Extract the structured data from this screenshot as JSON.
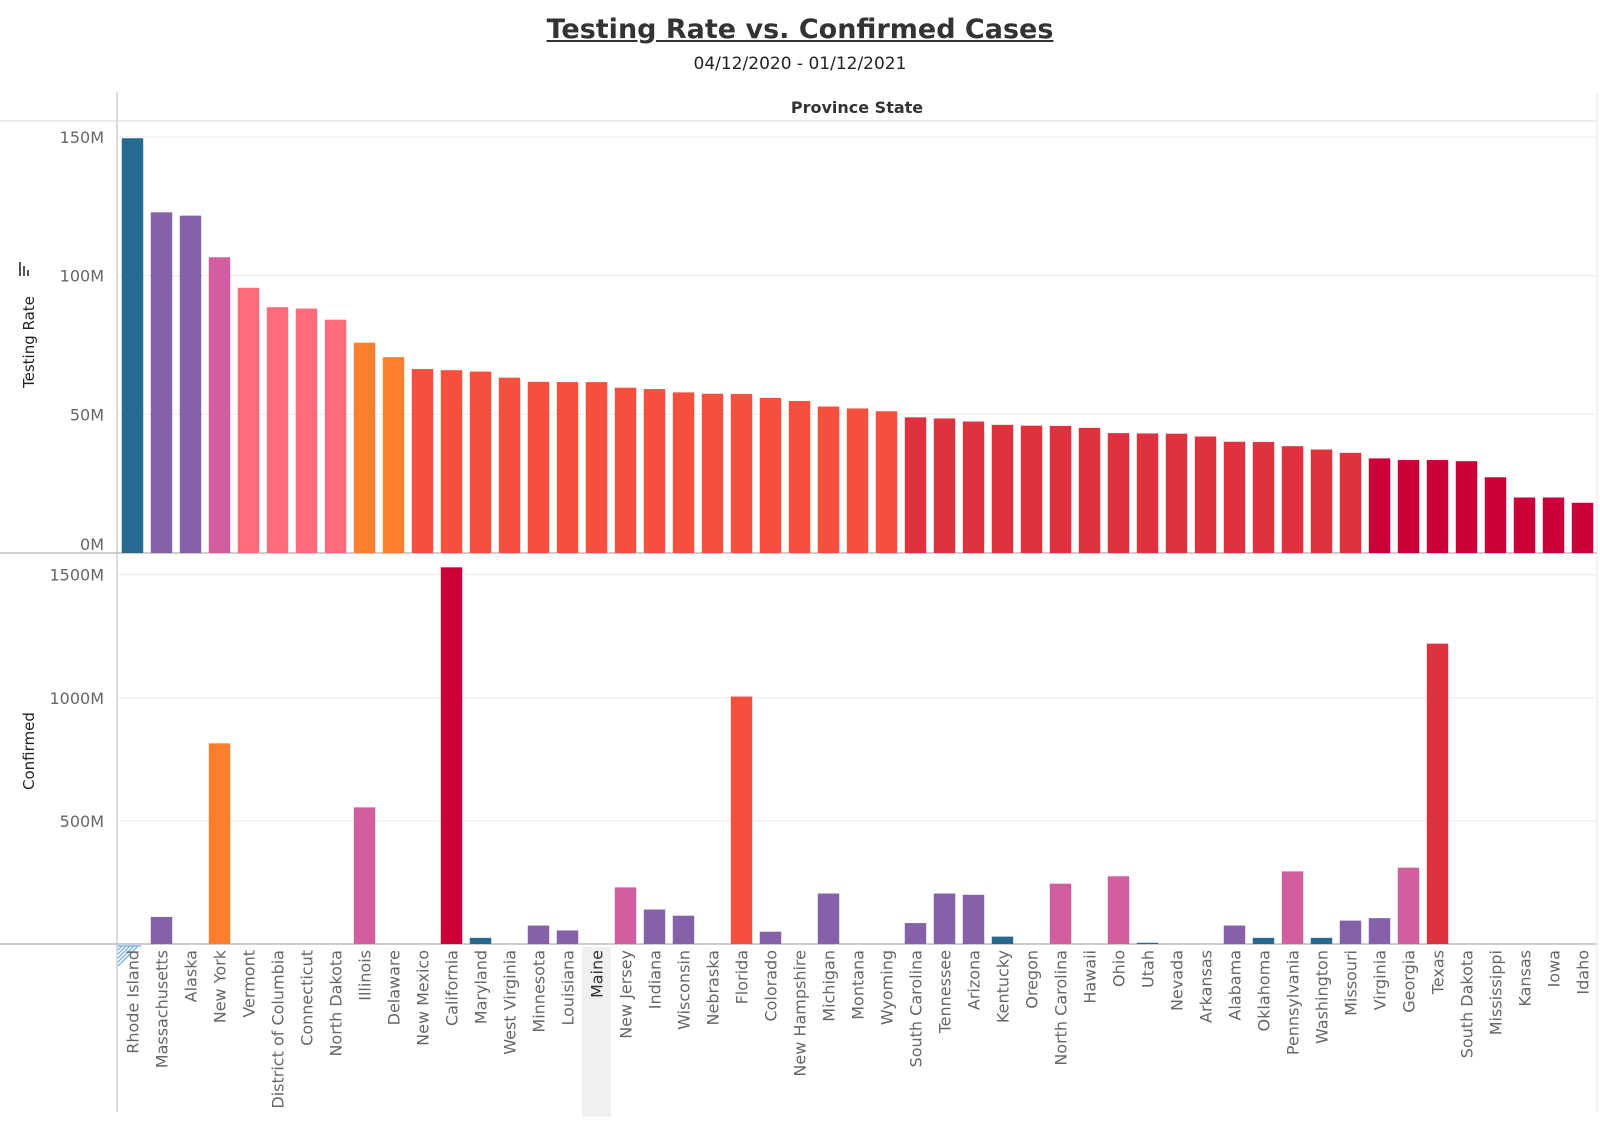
{
  "chart_data": {
    "type": "bar",
    "title": "Testing Rate vs. Confirmed Cases",
    "subtitle": "04/12/2020 - 01/12/2021",
    "column_header": "Province State",
    "sort_icon": "sort-descending-icon",
    "categories": [
      "Rhode Island",
      "Massachusetts",
      "Alaska",
      "New York",
      "Vermont",
      "District of Columbia",
      "Connecticut",
      "North Dakota",
      "Illinois",
      "Delaware",
      "New Mexico",
      "California",
      "Maryland",
      "West Virginia",
      "Minnesota",
      "Louisiana",
      "Maine",
      "New Jersey",
      "Indiana",
      "Wisconsin",
      "Nebraska",
      "Florida",
      "Colorado",
      "New Hampshire",
      "Michigan",
      "Montana",
      "Wyoming",
      "South Carolina",
      "Tennessee",
      "Arizona",
      "Kentucky",
      "Oregon",
      "North Carolina",
      "Hawaii",
      "Ohio",
      "Utah",
      "Nevada",
      "Arkansas",
      "Alabama",
      "Oklahoma",
      "Pennsylvania",
      "Washington",
      "Missouri",
      "Virginia",
      "Georgia",
      "Texas",
      "South Dakota",
      "Mississippi",
      "Kansas",
      "Iowa",
      "Idaho"
    ],
    "highlighted_category": "Maine",
    "series": [
      {
        "ylabel": "Testing Rate",
        "ylim": [
          0,
          155
        ],
        "ticks": [
          0,
          50,
          100,
          150
        ],
        "tick_labels": [
          "0M",
          "50M",
          "100M",
          "150M"
        ],
        "values": [
          149.5,
          122.8,
          121.6,
          106.6,
          95.6,
          88.6,
          88.1,
          84.1,
          75.8,
          70.6,
          66.3,
          65.9,
          65.4,
          63.2,
          61.7,
          61.6,
          61.6,
          59.6,
          59.1,
          57.9,
          57.4,
          57.3,
          55.9,
          54.8,
          52.8,
          52.1,
          51.1,
          48.9,
          48.5,
          47.4,
          46.2,
          45.9,
          45.8,
          45.1,
          43.2,
          43.1,
          43.0,
          42.0,
          40.1,
          40.0,
          38.5,
          37.3,
          36.1,
          34.1,
          33.5,
          33.5,
          33.1,
          27.3,
          20.0,
          20.0,
          18.1
        ],
        "colors": [
          "#276a91",
          "#8461a8",
          "#8461a8",
          "#d35e9f",
          "#ff6b7a",
          "#ff6b7a",
          "#ff6b7a",
          "#ff6b7a",
          "#fd7e2c",
          "#fd7e2c",
          "#f4503d",
          "#f4503d",
          "#f4503d",
          "#f4503d",
          "#f4503d",
          "#f4503d",
          "#f4503d",
          "#f4503d",
          "#f4503d",
          "#f4503d",
          "#f4503d",
          "#f4503d",
          "#f4503d",
          "#f4503d",
          "#f4503d",
          "#f4503d",
          "#f4503d",
          "#e0313e",
          "#e0313e",
          "#e0313e",
          "#e0313e",
          "#e0313e",
          "#e0313e",
          "#e0313e",
          "#e0313e",
          "#e0313e",
          "#e0313e",
          "#e0313e",
          "#e0313e",
          "#e0313e",
          "#e0313e",
          "#e0313e",
          "#e0313e",
          "#cc0039",
          "#cc0039",
          "#cc0039",
          "#cc0039",
          "#cc0039",
          "#cc0039",
          "#cc0039",
          "#cc0039"
        ]
      },
      {
        "ylabel": "Confirmed",
        "ylim": [
          0,
          1580
        ],
        "ticks": [
          500,
          1000,
          1500
        ],
        "tick_labels": [
          "500M",
          "1000M",
          "1500M"
        ],
        "values": [
          0,
          110,
          0,
          815,
          0,
          0,
          0,
          0,
          555,
          0,
          0,
          1530,
          25,
          0,
          75,
          55,
          0,
          230,
          140,
          115,
          0,
          1005,
          50,
          0,
          205,
          0,
          0,
          85,
          205,
          200,
          30,
          0,
          245,
          0,
          275,
          5,
          0,
          0,
          75,
          25,
          295,
          25,
          95,
          105,
          310,
          1220,
          0,
          0,
          0,
          0,
          0
        ],
        "colors": [
          "#276a91",
          "#8461a8",
          "#8461a8",
          "#fd7e2c",
          "#8461a8",
          "#8461a8",
          "#8461a8",
          "#8461a8",
          "#d35e9f",
          "#8461a8",
          "#8461a8",
          "#cc0039",
          "#276a91",
          "#8461a8",
          "#8461a8",
          "#8461a8",
          "#8461a8",
          "#d35e9f",
          "#8461a8",
          "#8461a8",
          "#8461a8",
          "#f4503d",
          "#8461a8",
          "#8461a8",
          "#8461a8",
          "#8461a8",
          "#8461a8",
          "#8461a8",
          "#8461a8",
          "#8461a8",
          "#276a91",
          "#8461a8",
          "#d35e9f",
          "#8461a8",
          "#d35e9f",
          "#276a91",
          "#8461a8",
          "#8461a8",
          "#8461a8",
          "#276a91",
          "#d35e9f",
          "#276a91",
          "#8461a8",
          "#8461a8",
          "#d35e9f",
          "#e0313e",
          "#8461a8",
          "#8461a8",
          "#8461a8",
          "#8461a8",
          "#8461a8"
        ]
      }
    ],
    "grid": true
  }
}
